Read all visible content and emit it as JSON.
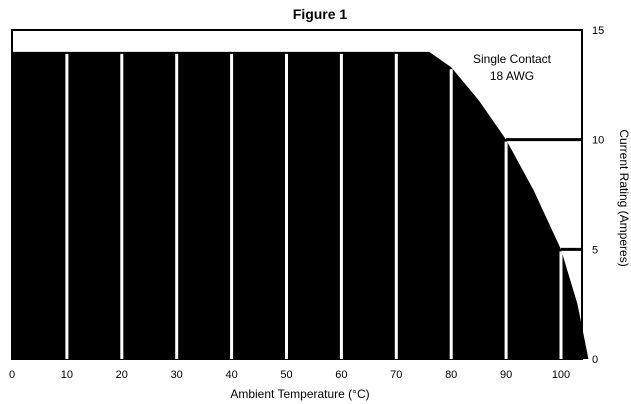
{
  "chart_data": {
    "type": "area",
    "title": "Figure 1",
    "xlabel": "Ambient Temperature (°C)",
    "ylabel": "Current Rating (Amperes)",
    "xlim": [
      0,
      110
    ],
    "ylim": [
      0,
      15
    ],
    "x_ticks": [
      0,
      10,
      20,
      30,
      40,
      50,
      60,
      70,
      80,
      90,
      100
    ],
    "y_ticks": [
      0,
      5,
      10,
      15
    ],
    "vertical_gridlines": [
      10,
      20,
      30,
      40,
      50,
      60,
      70,
      80,
      90,
      100
    ],
    "horizontal_reference_lines": [
      5,
      10
    ],
    "legend": "none",
    "fill_color": "#000000",
    "grid_color": "#ffffff",
    "annotation": [
      "Single Contact",
      "18 AWG"
    ],
    "series": [
      {
        "x": [
          0,
          76,
          80,
          85,
          90,
          95,
          100,
          103,
          105
        ],
        "y": [
          14,
          14,
          13.3,
          11.8,
          10,
          7.7,
          5,
          2.5,
          0
        ]
      }
    ]
  }
}
